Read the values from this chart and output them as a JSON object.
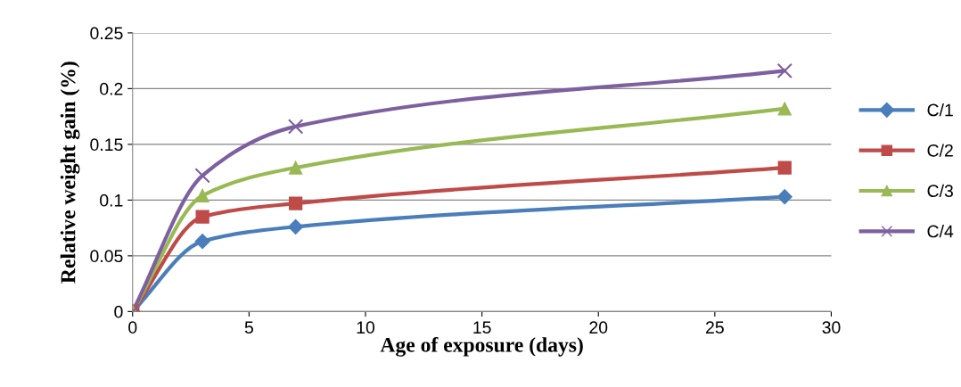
{
  "chart_data": {
    "type": "line",
    "xlabel": "Age of exposure (days)",
    "ylabel": "Relative weight gain (%)",
    "xlim": [
      0,
      30
    ],
    "xticks": [
      0,
      5,
      10,
      15,
      20,
      25,
      30
    ],
    "ylim": [
      0,
      0.25
    ],
    "yticks": [
      0,
      0.05,
      0.1,
      0.15,
      0.2,
      0.25
    ],
    "grid": "y",
    "legend": "right",
    "line_style": "solid",
    "x": [
      0,
      3,
      7,
      28
    ],
    "series": [
      {
        "name": "C/1",
        "color": "#4a7ebb",
        "marker": "diamond",
        "values": [
          0,
          0.063,
          0.076,
          0.103
        ]
      },
      {
        "name": "C/2",
        "color": "#be4b48",
        "marker": "square",
        "values": [
          0,
          0.085,
          0.097,
          0.129
        ]
      },
      {
        "name": "C/3",
        "color": "#98b954",
        "marker": "triangle",
        "values": [
          0,
          0.104,
          0.129,
          0.182
        ]
      },
      {
        "name": "C/4",
        "color": "#7d60a0",
        "marker": "cross",
        "values": [
          0,
          0.122,
          0.166,
          0.216
        ]
      }
    ]
  }
}
